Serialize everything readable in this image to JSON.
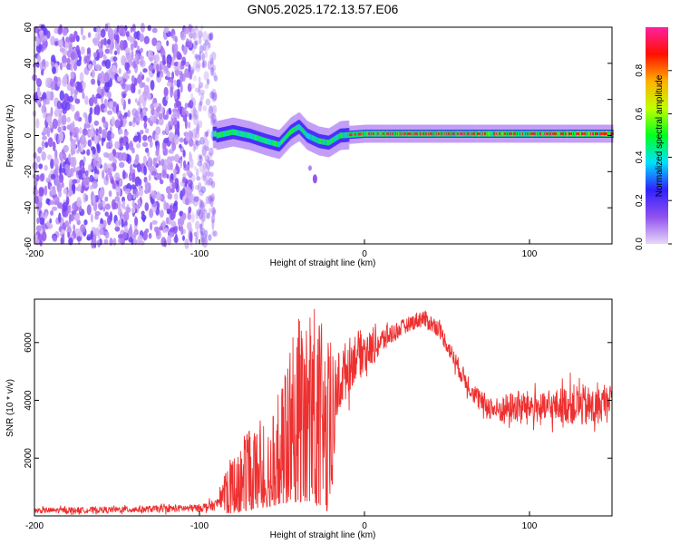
{
  "figure_title": "GN05.2025.172.13.57.E06",
  "chart_data": [
    {
      "type": "heatmap",
      "panel": "spectrogram",
      "xlabel": "Height of straight line (km)",
      "ylabel": "Frequency (Hz)",
      "xlim": [
        -200,
        150
      ],
      "ylim": [
        -60,
        60
      ],
      "xticks": [
        "-200",
        "-100",
        "0",
        "100"
      ],
      "yticks": [
        "60",
        "40",
        "20",
        "0",
        "-20",
        "-40",
        "-60"
      ],
      "colorbar": {
        "label": "Normalized spectral amplitude",
        "range": [
          0.0,
          1.0
        ],
        "ticks": [
          "0.0",
          "0.2",
          "0.4",
          "0.6",
          "0.8"
        ],
        "colors": [
          "#e8d8f8",
          "#9050f0",
          "#3020ff",
          "#00e0ff",
          "#00ff20",
          "#c0ff00",
          "#ffb000",
          "#ff1000",
          "#ff20a0"
        ]
      },
      "features": {
        "noise_region_x": [
          -200,
          -90
        ],
        "signal_center_track": [
          {
            "x": -90,
            "y": 0
          },
          {
            "x": -80,
            "y": 2
          },
          {
            "x": -70,
            "y": 0
          },
          {
            "x": -60,
            "y": -3
          },
          {
            "x": -52,
            "y": -5
          },
          {
            "x": -45,
            "y": 2
          },
          {
            "x": -40,
            "y": 5
          },
          {
            "x": -35,
            "y": 0
          },
          {
            "x": -28,
            "y": -3
          },
          {
            "x": -22,
            "y": -4
          },
          {
            "x": -15,
            "y": 0
          },
          {
            "x": 0,
            "y": 1
          },
          {
            "x": 50,
            "y": 1
          },
          {
            "x": 100,
            "y": 1
          },
          {
            "x": 150,
            "y": 1
          }
        ],
        "outlier_blob": {
          "x": -30,
          "y": -24
        }
      }
    },
    {
      "type": "line",
      "panel": "snr",
      "xlabel": "Height of straight line (km)",
      "ylabel": "SNR (10 * v/v)",
      "xlim": [
        -200,
        150
      ],
      "ylim": [
        0,
        7500
      ],
      "xticks": [
        "-200",
        "-100",
        "0",
        "100"
      ],
      "yticks": [
        "2000",
        "4000",
        "6000"
      ],
      "series": [
        {
          "color": "#ee3030",
          "envelope": [
            {
              "x": -200,
              "low": 20,
              "high": 350
            },
            {
              "x": -150,
              "low": 30,
              "high": 400
            },
            {
              "x": -100,
              "low": 40,
              "high": 500
            },
            {
              "x": -90,
              "low": 50,
              "high": 700
            },
            {
              "x": -80,
              "low": 100,
              "high": 2200
            },
            {
              "x": -70,
              "low": 200,
              "high": 3000
            },
            {
              "x": -60,
              "low": 300,
              "high": 3600
            },
            {
              "x": -50,
              "low": 400,
              "high": 4500
            },
            {
              "x": -40,
              "low": 500,
              "high": 7200
            },
            {
              "x": -30,
              "low": 400,
              "high": 7400
            },
            {
              "x": -22,
              "low": 100,
              "high": 6000
            },
            {
              "x": -15,
              "low": 2800,
              "high": 6600
            },
            {
              "x": -5,
              "low": 4200,
              "high": 7000
            },
            {
              "x": 5,
              "low": 4800,
              "high": 6800
            },
            {
              "x": 15,
              "low": 5600,
              "high": 6900
            },
            {
              "x": 25,
              "low": 6200,
              "high": 7000
            },
            {
              "x": 35,
              "low": 6300,
              "high": 7400
            },
            {
              "x": 45,
              "low": 6000,
              "high": 7000
            },
            {
              "x": 52,
              "low": 5200,
              "high": 6200
            },
            {
              "x": 60,
              "low": 4200,
              "high": 5400
            },
            {
              "x": 70,
              "low": 3300,
              "high": 4600
            },
            {
              "x": 80,
              "low": 2900,
              "high": 4400
            },
            {
              "x": 90,
              "low": 2800,
              "high": 4700
            },
            {
              "x": 100,
              "low": 2900,
              "high": 4700
            },
            {
              "x": 110,
              "low": 2800,
              "high": 4600
            },
            {
              "x": 120,
              "low": 2800,
              "high": 4900
            },
            {
              "x": 130,
              "low": 2600,
              "high": 5100
            },
            {
              "x": 140,
              "low": 2500,
              "high": 4900
            },
            {
              "x": 150,
              "low": 3500,
              "high": 4800
            }
          ]
        }
      ]
    }
  ]
}
